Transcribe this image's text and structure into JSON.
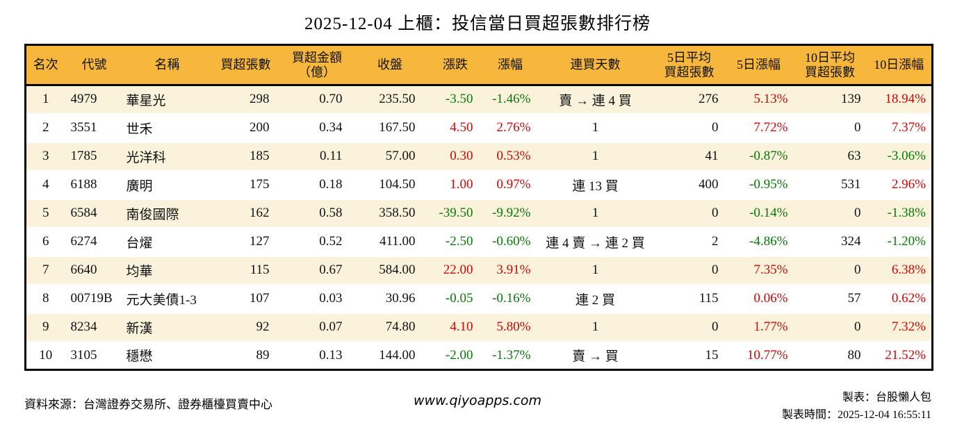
{
  "title": "2025-12-04 上櫃：投信當日買超張數排行榜",
  "colors": {
    "up_red": "#cf0606",
    "down_green": "#067a06",
    "header_bg": "#f6b73c",
    "stripe_bg": "#fbf2dc",
    "border_black": "#000000"
  },
  "chart_data": {
    "type": "table",
    "title": "2025-12-04 上櫃：投信當日買超張數排行榜",
    "color_convention": "positive values red, negative values green",
    "columns": [
      {
        "id": "rank",
        "label": "名次"
      },
      {
        "id": "code",
        "label": "代號"
      },
      {
        "id": "name",
        "label": "名稱"
      },
      {
        "id": "net_buy",
        "label": "買超張數"
      },
      {
        "id": "amount",
        "label": "買超金額",
        "label2": "（億）"
      },
      {
        "id": "close",
        "label": "收盤"
      },
      {
        "id": "change",
        "label": "漲跌"
      },
      {
        "id": "change_pct",
        "label": "漲幅"
      },
      {
        "id": "streak",
        "label": "連買天數"
      },
      {
        "id": "avg5",
        "label": "5日平均",
        "label2": "買超張數"
      },
      {
        "id": "pct5",
        "label": "5日漲幅"
      },
      {
        "id": "avg10",
        "label": "10日平均",
        "label2": "買超張數"
      },
      {
        "id": "pct10",
        "label": "10日漲幅"
      }
    ],
    "rows": [
      {
        "rank": "1",
        "code": "4979",
        "name": "華星光",
        "net_buy": "298",
        "amount": "0.70",
        "close": "235.50",
        "change": "-3.50",
        "change_pct": "-1.46%",
        "streak": "賣 → 連 4 買",
        "avg5": "276",
        "pct5": "5.13%",
        "avg10": "139",
        "pct10": "18.94%"
      },
      {
        "rank": "2",
        "code": "3551",
        "name": "世禾",
        "net_buy": "200",
        "amount": "0.34",
        "close": "167.50",
        "change": "4.50",
        "change_pct": "2.76%",
        "streak": "1",
        "avg5": "0",
        "pct5": "7.72%",
        "avg10": "0",
        "pct10": "7.37%"
      },
      {
        "rank": "3",
        "code": "1785",
        "name": "光洋科",
        "net_buy": "185",
        "amount": "0.11",
        "close": "57.00",
        "change": "0.30",
        "change_pct": "0.53%",
        "streak": "1",
        "avg5": "41",
        "pct5": "-0.87%",
        "avg10": "63",
        "pct10": "-3.06%"
      },
      {
        "rank": "4",
        "code": "6188",
        "name": "廣明",
        "net_buy": "175",
        "amount": "0.18",
        "close": "104.50",
        "change": "1.00",
        "change_pct": "0.97%",
        "streak": "連 13 買",
        "avg5": "400",
        "pct5": "-0.95%",
        "avg10": "531",
        "pct10": "2.96%"
      },
      {
        "rank": "5",
        "code": "6584",
        "name": "南俊國際",
        "net_buy": "162",
        "amount": "0.58",
        "close": "358.50",
        "change": "-39.50",
        "change_pct": "-9.92%",
        "streak": "1",
        "avg5": "0",
        "pct5": "-0.14%",
        "avg10": "0",
        "pct10": "-1.38%"
      },
      {
        "rank": "6",
        "code": "6274",
        "name": "台燿",
        "net_buy": "127",
        "amount": "0.52",
        "close": "411.00",
        "change": "-2.50",
        "change_pct": "-0.60%",
        "streak": "連 4 賣 → 連 2 買",
        "avg5": "2",
        "pct5": "-4.86%",
        "avg10": "324",
        "pct10": "-1.20%"
      },
      {
        "rank": "7",
        "code": "6640",
        "name": "均華",
        "net_buy": "115",
        "amount": "0.67",
        "close": "584.00",
        "change": "22.00",
        "change_pct": "3.91%",
        "streak": "1",
        "avg5": "0",
        "pct5": "7.35%",
        "avg10": "0",
        "pct10": "6.38%"
      },
      {
        "rank": "8",
        "code": "00719B",
        "name": "元大美債1-3",
        "net_buy": "107",
        "amount": "0.03",
        "close": "30.96",
        "change": "-0.05",
        "change_pct": "-0.16%",
        "streak": "連 2 買",
        "avg5": "115",
        "pct5": "0.06%",
        "avg10": "57",
        "pct10": "0.62%"
      },
      {
        "rank": "9",
        "code": "8234",
        "name": "新漢",
        "net_buy": "92",
        "amount": "0.07",
        "close": "74.80",
        "change": "4.10",
        "change_pct": "5.80%",
        "streak": "1",
        "avg5": "0",
        "pct5": "1.77%",
        "avg10": "0",
        "pct10": "7.32%"
      },
      {
        "rank": "10",
        "code": "3105",
        "name": "穩懋",
        "net_buy": "89",
        "amount": "0.13",
        "close": "144.00",
        "change": "-2.00",
        "change_pct": "-1.37%",
        "streak": "賣 → 買",
        "avg5": "15",
        "pct5": "10.77%",
        "avg10": "80",
        "pct10": "21.52%"
      }
    ]
  },
  "footer": {
    "source": "資料來源：台灣證券交易所、證券櫃檯買賣中心",
    "site": "www.qiyoapps.com",
    "maker": "製表：台股懶人包",
    "made_time": "製表時間：2025-12-04 16:55:11"
  }
}
